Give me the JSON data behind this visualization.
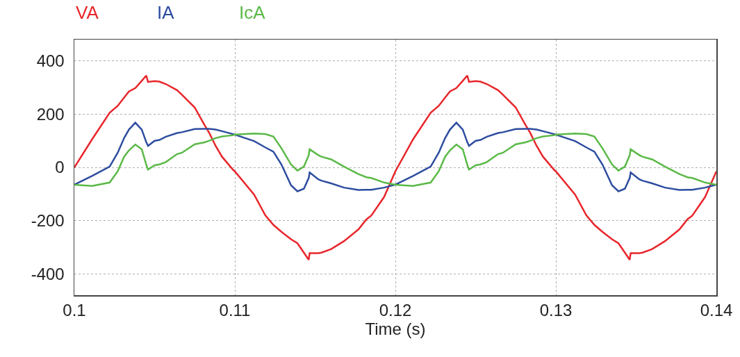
{
  "chart_data": {
    "type": "line",
    "xlabel": "Time (s)",
    "xlim": [
      0.1,
      0.14
    ],
    "xticks": [
      0.1,
      0.11,
      0.12,
      0.13,
      0.14
    ],
    "ylim": [
      -480,
      480
    ],
    "yticks": [
      -400,
      -200,
      0,
      200,
      400
    ],
    "grid": true,
    "legend": "top left",
    "line_style": "solid",
    "marker": "none",
    "x": [
      0.1,
      0.1011,
      0.1022,
      0.1027,
      0.1031,
      0.1034,
      0.1038,
      0.1042,
      0.10448,
      0.10459,
      0.105,
      0.1053,
      0.1057,
      0.1064,
      0.1067,
      0.1075,
      0.1081,
      0.1084,
      0.1088,
      0.1092,
      0.1099,
      0.11,
      0.1112,
      0.1119,
      0.1124,
      0.1129,
      0.1135,
      0.1139,
      0.1143,
      0.1146,
      0.11466,
      0.1152,
      0.1154,
      0.116,
      0.1168,
      0.1177,
      0.1182,
      0.1185,
      0.1193,
      0.12,
      0.1211,
      0.1222,
      0.1227,
      0.1231,
      0.1234,
      0.1238,
      0.1242,
      0.12448,
      0.12459,
      0.125,
      0.1253,
      0.1257,
      0.1264,
      0.1267,
      0.1275,
      0.1281,
      0.1284,
      0.1288,
      0.1292,
      0.1299,
      0.13,
      0.1312,
      0.1319,
      0.1324,
      0.1329,
      0.1335,
      0.1339,
      0.1343,
      0.1346,
      0.13466,
      0.1352,
      0.1354,
      0.136,
      0.1368,
      0.1377,
      0.1382,
      0.1385,
      0.1393,
      0.14
    ],
    "series": [
      {
        "name": "VA",
        "color": "#e8262b",
        "values": [
          0,
          105,
          205,
          231,
          262,
          285,
          298,
          325,
          345,
          321,
          324,
          322,
          313,
          290,
          273,
          225,
          160,
          130,
          81,
          40,
          -10,
          -15,
          -102,
          -180,
          -216,
          -242,
          -270,
          -285,
          -320,
          -347,
          -322,
          -322,
          -320,
          -307,
          -277,
          -233,
          -195,
          -181,
          -111,
          -15,
          105,
          205,
          231,
          262,
          285,
          298,
          325,
          345,
          321,
          324,
          322,
          313,
          290,
          273,
          225,
          160,
          130,
          81,
          40,
          -10,
          -15,
          -102,
          -180,
          -216,
          -242,
          -270,
          -285,
          -320,
          -347,
          -322,
          -322,
          -320,
          -307,
          -277,
          -233,
          -195,
          -181,
          -111,
          -15
        ]
      },
      {
        "name": "IA",
        "color": "#2e4da0",
        "values": [
          -65,
          -32,
          3,
          55,
          110,
          142,
          168,
          142,
          95,
          81,
          100,
          103,
          115,
          129,
          132,
          144,
          145,
          145,
          142,
          136,
          125,
          123,
          99,
          75,
          59,
          11,
          -67,
          -90,
          -80,
          -40,
          -19,
          -45,
          -50,
          -60,
          -76,
          -85,
          -84,
          -84,
          -76,
          -65,
          -32,
          3,
          55,
          110,
          142,
          168,
          142,
          95,
          81,
          100,
          103,
          115,
          129,
          132,
          144,
          145,
          145,
          142,
          136,
          125,
          123,
          99,
          75,
          59,
          11,
          -67,
          -90,
          -80,
          -40,
          -19,
          -45,
          -50,
          -60,
          -76,
          -85,
          -84,
          -84,
          -76,
          -65
        ]
      },
      {
        "name": "IcA",
        "color": "#5ab946",
        "values": [
          -65,
          -70,
          -57,
          -15,
          40,
          64,
          86,
          68,
          10,
          -8,
          8,
          11,
          20,
          50,
          55,
          87,
          94,
          100,
          110,
          116,
          121,
          123,
          127,
          125,
          116,
          72,
          11,
          -12,
          3,
          45,
          68,
          46,
          40,
          30,
          3,
          -25,
          -37,
          -40,
          -57,
          -65,
          -70,
          -57,
          -15,
          40,
          64,
          86,
          68,
          10,
          -8,
          8,
          11,
          20,
          50,
          55,
          87,
          94,
          100,
          110,
          116,
          121,
          123,
          127,
          125,
          116,
          72,
          11,
          -12,
          3,
          45,
          68,
          46,
          40,
          30,
          3,
          -25,
          -37,
          -40,
          -57,
          -65
        ]
      }
    ]
  }
}
